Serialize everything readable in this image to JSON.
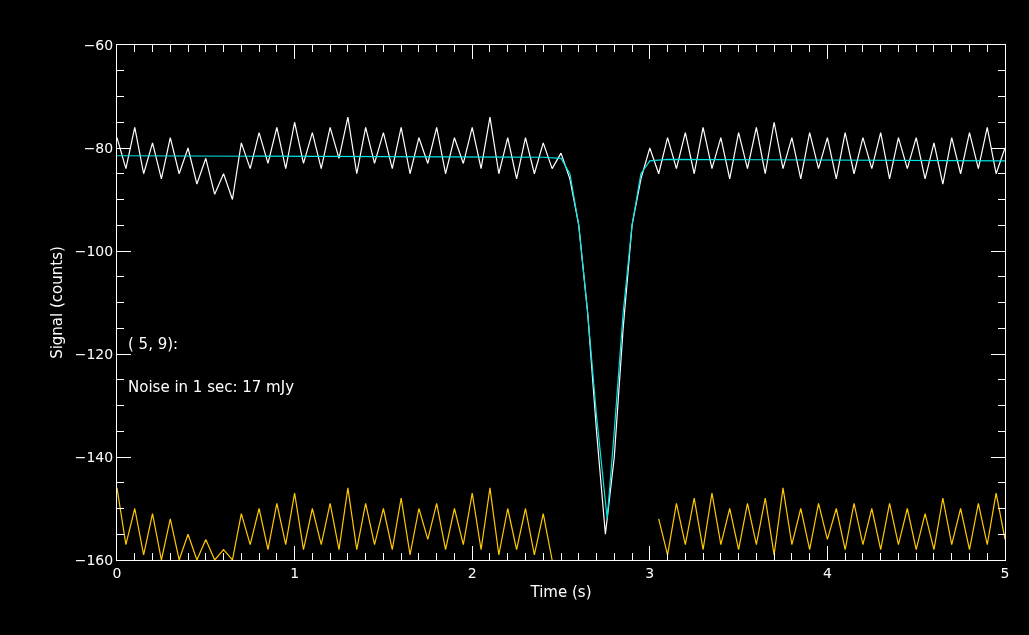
{
  "chart_data": {
    "type": "line",
    "xlabel": "Time (s)",
    "ylabel": "Signal (counts)",
    "annotations": [
      "( 5, 9):",
      "Noise in 1 sec: 17 mJy"
    ],
    "x": [
      0,
      0.05,
      0.1,
      0.15,
      0.2,
      0.25,
      0.3,
      0.35,
      0.4,
      0.45,
      0.5,
      0.55,
      0.6,
      0.65,
      0.7,
      0.75,
      0.8,
      0.85,
      0.9,
      0.95,
      1,
      1.05,
      1.1,
      1.15,
      1.2,
      1.25,
      1.3,
      1.35,
      1.4,
      1.45,
      1.5,
      1.55,
      1.6,
      1.65,
      1.7,
      1.75,
      1.8,
      1.85,
      1.9,
      1.95,
      2,
      2.05,
      2.1,
      2.15,
      2.2,
      2.25,
      2.3,
      2.35,
      2.4,
      2.45,
      2.5,
      2.55,
      2.6,
      2.65,
      2.7,
      2.75,
      2.8,
      2.85,
      2.9,
      2.95,
      3,
      3.05,
      3.1,
      3.15,
      3.2,
      3.25,
      3.3,
      3.35,
      3.4,
      3.45,
      3.5,
      3.55,
      3.6,
      3.65,
      3.7,
      3.75,
      3.8,
      3.85,
      3.9,
      3.95,
      4,
      4.05,
      4.1,
      4.15,
      4.2,
      4.25,
      4.3,
      4.35,
      4.4,
      4.45,
      4.5,
      4.55,
      4.6,
      4.65,
      4.7,
      4.75,
      4.8,
      4.85,
      4.9,
      4.95,
      5
    ],
    "series": [
      {
        "color": "#ffffff",
        "values": [
          -78,
          -84,
          -76,
          -85,
          -79,
          -86,
          -78,
          -85,
          -80,
          -87,
          -82,
          -89,
          -85,
          -90,
          -79,
          -84,
          -77,
          -83,
          -76,
          -84,
          -75,
          -83,
          -77,
          -84,
          -76,
          -82,
          -74,
          -85,
          -76,
          -83,
          -77,
          -84,
          -76,
          -85,
          -78,
          -83,
          -76,
          -85,
          -78,
          -83,
          -76,
          -84,
          -74,
          -85,
          -78,
          -86,
          -78,
          -85,
          -79,
          -84,
          -81,
          -86,
          -95,
          -112,
          -135,
          -155,
          -140,
          -115,
          -95,
          -86,
          -80,
          -85,
          -78,
          -84,
          -77,
          -85,
          -76,
          -84,
          -78,
          -86,
          -77,
          -84,
          -76,
          -85,
          -75,
          -84,
          -78,
          -86,
          -77,
          -84,
          -78,
          -86,
          -77,
          -85,
          -78,
          -84,
          -77,
          -86,
          -78,
          -84,
          -78,
          -86,
          -79,
          -87,
          -78,
          -85,
          -77,
          -84,
          -76,
          -85,
          -80
        ]
      },
      {
        "color": "#ffc800",
        "values": [
          -146,
          -157,
          -150,
          -159,
          -151,
          -160,
          -152,
          -160,
          -155,
          -160,
          -156,
          -160,
          -158,
          -160,
          -151,
          -157,
          -150,
          -158,
          -149,
          -157,
          -147,
          -158,
          -150,
          -157,
          -149,
          -158,
          -146,
          -158,
          -149,
          -157,
          -150,
          -158,
          -148,
          -159,
          -150,
          -156,
          -149,
          -158,
          -150,
          -157,
          -147,
          -158,
          -146,
          -159,
          -150,
          -158,
          -150,
          -159,
          -151,
          -160,
          null,
          null,
          null,
          null,
          null,
          null,
          null,
          null,
          null,
          null,
          null,
          -152,
          -159,
          -149,
          -157,
          -148,
          -158,
          -147,
          -157,
          -150,
          -158,
          -149,
          -157,
          -148,
          -159,
          -146,
          -157,
          -150,
          -158,
          -149,
          -156,
          -150,
          -158,
          -149,
          -157,
          -150,
          -158,
          -149,
          -157,
          -150,
          -158,
          -151,
          -158,
          -148,
          -157,
          -150,
          -158,
          -149,
          -157,
          -147,
          -156
        ]
      },
      {
        "color": "#00e5e5",
        "x": [
          0,
          2.4,
          2.5,
          2.55,
          2.6,
          2.65,
          2.7,
          2.76,
          2.8,
          2.85,
          2.9,
          2.95,
          3,
          3.1,
          5
        ],
        "values": [
          -81.5,
          -81.8,
          -82,
          -85,
          -95,
          -112,
          -132,
          -152,
          -135,
          -112,
          -95,
          -85,
          -82.5,
          -82.2,
          -82.5
        ]
      }
    ],
    "xlim": [
      0,
      5
    ],
    "xticks": [
      0,
      1,
      2,
      3,
      4,
      5
    ],
    "ylim": [
      -160,
      -60
    ],
    "yticks": [
      -160,
      -140,
      -120,
      -100,
      -80,
      -60
    ],
    "grid": false,
    "marker": "none",
    "line_style": "solid"
  }
}
